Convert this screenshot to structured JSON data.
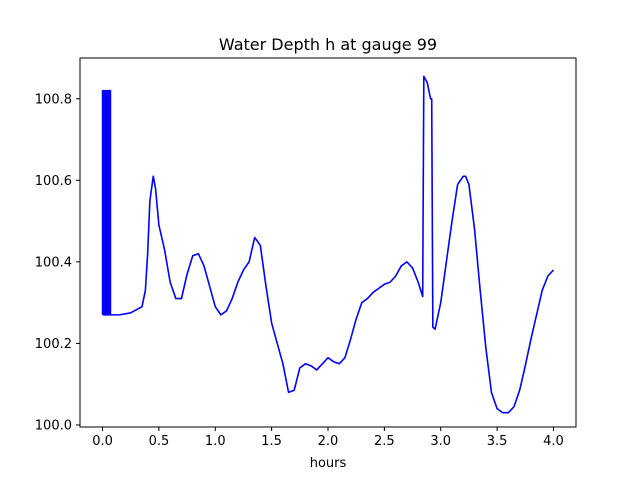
{
  "chart_data": {
    "type": "line",
    "title": "Water Depth h at gauge 99",
    "xlabel": "hours",
    "ylabel": "",
    "xlim": [
      -0.2,
      4.2
    ],
    "ylim": [
      99.995,
      100.9
    ],
    "xticks": [
      "0.0",
      "0.5",
      "1.0",
      "1.5",
      "2.0",
      "2.5",
      "3.0",
      "3.5",
      "4.0"
    ],
    "yticks": [
      "100.0",
      "100.2",
      "100.4",
      "100.6",
      "100.8"
    ],
    "xtick_values": [
      0.0,
      0.5,
      1.0,
      1.5,
      2.0,
      2.5,
      3.0,
      3.5,
      4.0
    ],
    "ytick_values": [
      100.0,
      100.2,
      100.4,
      100.6,
      100.8
    ],
    "grid": false,
    "series": [
      {
        "color": "#0000ff",
        "x": [
          0.0,
          0.0,
          0.01,
          0.01,
          0.02,
          0.02,
          0.03,
          0.03,
          0.04,
          0.04,
          0.05,
          0.05,
          0.06,
          0.06,
          0.07,
          0.07,
          0.15,
          0.25,
          0.35,
          0.38,
          0.4,
          0.42,
          0.45,
          0.47,
          0.5,
          0.55,
          0.6,
          0.65,
          0.7,
          0.75,
          0.8,
          0.85,
          0.9,
          0.95,
          1.0,
          1.05,
          1.1,
          1.15,
          1.2,
          1.25,
          1.3,
          1.35,
          1.4,
          1.45,
          1.5,
          1.55,
          1.6,
          1.65,
          1.7,
          1.75,
          1.8,
          1.85,
          1.9,
          1.95,
          2.0,
          2.05,
          2.1,
          2.15,
          2.2,
          2.25,
          2.3,
          2.35,
          2.4,
          2.45,
          2.5,
          2.55,
          2.6,
          2.65,
          2.7,
          2.75,
          2.8,
          2.84,
          2.85,
          2.85,
          2.88,
          2.91,
          2.92,
          2.93,
          2.95,
          3.0,
          3.05,
          3.1,
          3.15,
          3.2,
          3.22,
          3.25,
          3.3,
          3.35,
          3.4,
          3.45,
          3.5,
          3.55,
          3.6,
          3.65,
          3.7,
          3.75,
          3.8,
          3.85,
          3.9,
          3.95,
          4.0
        ],
        "y": [
          100.27,
          100.82,
          100.82,
          100.27,
          100.27,
          100.82,
          100.82,
          100.27,
          100.27,
          100.82,
          100.82,
          100.27,
          100.27,
          100.82,
          100.82,
          100.27,
          100.27,
          100.275,
          100.29,
          100.33,
          100.42,
          100.55,
          100.61,
          100.58,
          100.49,
          100.43,
          100.35,
          100.31,
          100.31,
          100.37,
          100.415,
          100.42,
          100.39,
          100.34,
          100.29,
          100.27,
          100.28,
          100.31,
          100.35,
          100.38,
          100.4,
          100.46,
          100.44,
          100.34,
          100.25,
          100.2,
          100.15,
          100.08,
          100.085,
          100.14,
          100.15,
          100.145,
          100.135,
          100.15,
          100.165,
          100.155,
          100.15,
          100.165,
          100.21,
          100.26,
          100.3,
          100.31,
          100.325,
          100.335,
          100.345,
          100.35,
          100.365,
          100.39,
          100.4,
          100.385,
          100.35,
          100.315,
          100.855,
          100.855,
          100.84,
          100.8,
          100.8,
          100.24,
          100.235,
          100.3,
          100.4,
          100.5,
          100.59,
          100.61,
          100.61,
          100.59,
          100.48,
          100.33,
          100.19,
          100.08,
          100.04,
          100.03,
          100.03,
          100.045,
          100.085,
          100.145,
          100.21,
          100.27,
          100.33,
          100.365,
          100.38
        ]
      }
    ]
  }
}
